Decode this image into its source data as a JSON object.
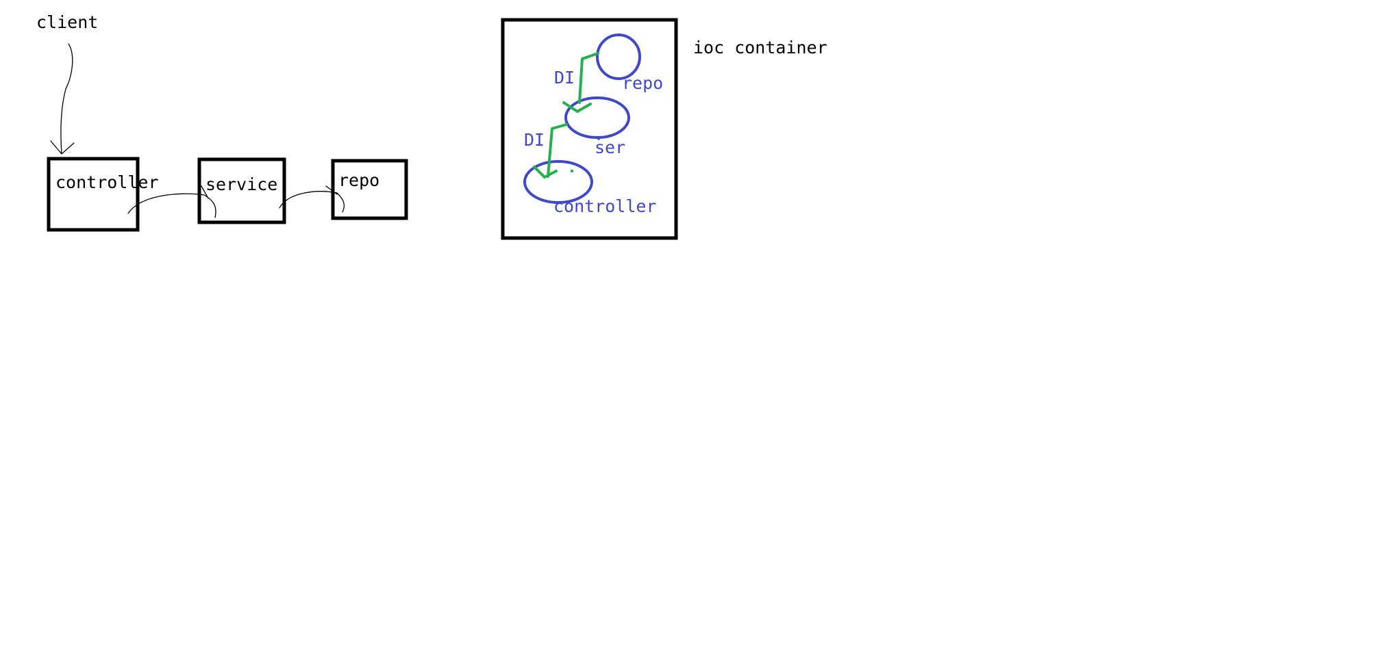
{
  "left_flow": {
    "client_label": "client",
    "controller_label": "controller",
    "service_label": "service",
    "repo_label": "repo"
  },
  "ioc": {
    "title": "ioc container",
    "repo_label": "repo",
    "ser_label": "ser",
    "controller_label": "controller",
    "di_label_top": "DI",
    "di_label_bottom": "DI"
  },
  "colors": {
    "ink": "#000000",
    "bean": "#3f48cc",
    "injection": "#22b14c",
    "background": "#ffffff"
  }
}
